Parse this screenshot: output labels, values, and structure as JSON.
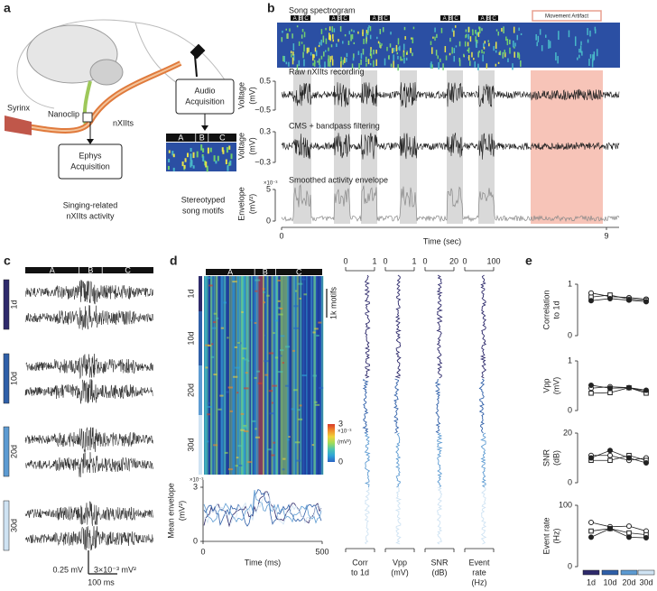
{
  "panel_a": {
    "label": "a",
    "nanoclip": "Nanoclip",
    "nxiits": "nXIIts",
    "syrinx": "Syrinx",
    "ephys": [
      "Ephys",
      "Acquisition"
    ],
    "ephys_caption": [
      "Singing-related",
      "nXIIts activity"
    ],
    "audio": [
      "Audio",
      "Acquisition"
    ],
    "motif": [
      "A",
      "B",
      "C"
    ],
    "audio_caption": [
      "Stereotyped",
      "song motifs"
    ]
  },
  "panel_b": {
    "label": "b",
    "spectrogram_title": "Song spectrogram",
    "motif": [
      "A",
      "B",
      "C"
    ],
    "artifact": "Movement Artifact",
    "raw_title": "Raw nXIIts recording",
    "cms_title": "CMS + bandpass filtering",
    "env_title": "Smoothed activity envelope",
    "voltage_label": "Voltage",
    "voltage_unit": "(mV)",
    "raw_yticks": [
      0.5,
      {
        "value": -0.5,
        "label": "−0.5"
      }
    ],
    "cms_yticks": [
      0.3,
      {
        "value": -0.3,
        "label": "−0.3"
      }
    ],
    "envelope_label": "Envelope",
    "envelope_unit": "(mV²)",
    "env_exponent": "×10⁻³",
    "env_yticks": [
      0,
      5
    ],
    "xticks": [
      0,
      9
    ],
    "xlabel": "Time (sec)"
  },
  "panel_c": {
    "label": "c",
    "motif": [
      "A",
      "B",
      "C"
    ],
    "ages": [
      "1d",
      "10d",
      "20d",
      "30d"
    ],
    "scale_v": "0.25 mV",
    "scale_env": "3×10⁻³ mV²",
    "scale_t": "100 ms"
  },
  "panel_d": {
    "label": "d",
    "motif": [
      "A",
      "B",
      "C"
    ],
    "ages": [
      "1d",
      "10d",
      "20d",
      "30d"
    ],
    "motifs_scale": "1k motifs",
    "colorbar": {
      "ticks": [
        0,
        3
      ],
      "exponent": "×10⁻³",
      "unit": "(mV²)"
    },
    "mean": {
      "ylabel": "Mean envelope",
      "unit": "(mV²)",
      "ylim": [
        0,
        3
      ],
      "yticks": [
        0,
        3
      ],
      "exponent": "×10⁻³",
      "xlim": [
        0,
        500
      ],
      "xticks": [
        0,
        500
      ],
      "xlabel": "Time (ms)"
    },
    "metrics": [
      {
        "label": [
          "Corr",
          "to 1d"
        ],
        "xlim": [
          0,
          1
        ],
        "xticks": [
          0,
          1
        ]
      },
      {
        "label": [
          "Vpp",
          "(mV)"
        ],
        "xlim": [
          0,
          1
        ],
        "xticks": [
          0,
          1
        ]
      },
      {
        "label": [
          "SNR",
          "(dB)"
        ],
        "xlim": [
          0,
          20
        ],
        "xticks": [
          0,
          20
        ]
      },
      {
        "label": [
          "Event",
          "rate",
          "(Hz)"
        ],
        "xlim": [
          0,
          100
        ],
        "xticks": [
          0,
          100
        ]
      }
    ]
  },
  "panel_e": {
    "label": "e",
    "ages": [
      "1d",
      "10d",
      "20d",
      "30d"
    ],
    "age_colors": [
      "#2e2a6b",
      "#2f5fa8",
      "#5d9bd2",
      "#cfe3f3"
    ],
    "plots": [
      {
        "ylabel": [
          "Correlation",
          "to 1d"
        ],
        "ylim": [
          0,
          1
        ],
        "yticks": [
          0,
          1
        ],
        "series": [
          {
            "marker": "open-circle",
            "values": [
              0.83,
              0.76,
              0.74,
              0.71
            ]
          },
          {
            "marker": "open-square",
            "values": [
              0.75,
              0.79,
              0.71,
              0.69
            ]
          },
          {
            "marker": "filled-circle",
            "values": [
              0.68,
              0.72,
              0.69,
              0.66
            ]
          }
        ]
      },
      {
        "ylabel": [
          "Vpp",
          "(mV)"
        ],
        "ylim": [
          0,
          1
        ],
        "yticks": [
          0,
          1
        ],
        "series": [
          {
            "marker": "open-circle",
            "values": [
              0.45,
              0.48,
              0.46,
              0.38
            ]
          },
          {
            "marker": "open-square",
            "values": [
              0.35,
              0.36,
              0.46,
              0.35
            ]
          },
          {
            "marker": "filled-circle",
            "values": [
              0.51,
              0.45,
              0.46,
              0.41
            ]
          }
        ]
      },
      {
        "ylabel": [
          "SNR",
          "(dB)"
        ],
        "ylim": [
          0,
          20
        ],
        "yticks": [
          0,
          20
        ],
        "series": [
          {
            "marker": "open-circle",
            "values": [
              11,
              11,
              9,
              10
            ]
          },
          {
            "marker": "open-square",
            "values": [
              9,
              9,
              11,
              9
            ]
          },
          {
            "marker": "filled-circle",
            "values": [
              10,
              13,
              10,
              8
            ]
          }
        ]
      },
      {
        "ylabel": [
          "Event rate",
          "(Hz)"
        ],
        "ylim": [
          0,
          100
        ],
        "yticks": [
          0,
          100
        ],
        "series": [
          {
            "marker": "open-circle",
            "values": [
              72,
              65,
              66,
              58
            ]
          },
          {
            "marker": "open-square",
            "values": [
              58,
              62,
              55,
              52
            ]
          },
          {
            "marker": "filled-circle",
            "values": [
              48,
              62,
              48,
              47
            ]
          }
        ]
      }
    ]
  }
}
